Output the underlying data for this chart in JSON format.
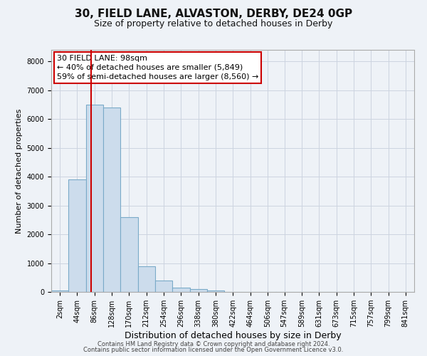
{
  "title1": "30, FIELD LANE, ALVASTON, DERBY, DE24 0GP",
  "title2": "Size of property relative to detached houses in Derby",
  "xlabel": "Distribution of detached houses by size in Derby",
  "ylabel": "Number of detached properties",
  "bar_color": "#ccdcec",
  "bar_edge_color": "#7aaac8",
  "bins": [
    "2sqm",
    "44sqm",
    "86sqm",
    "128sqm",
    "170sqm",
    "212sqm",
    "254sqm",
    "296sqm",
    "338sqm",
    "380sqm",
    "422sqm",
    "464sqm",
    "506sqm",
    "547sqm",
    "589sqm",
    "631sqm",
    "673sqm",
    "715sqm",
    "757sqm",
    "799sqm",
    "841sqm"
  ],
  "values": [
    60,
    3900,
    6500,
    6400,
    2600,
    900,
    400,
    150,
    100,
    50,
    0,
    0,
    0,
    0,
    0,
    0,
    0,
    0,
    0,
    0,
    0
  ],
  "bin_width": 42,
  "bin_starts": [
    2,
    44,
    86,
    128,
    170,
    212,
    254,
    296,
    338,
    380,
    422,
    464,
    506,
    547,
    589,
    631,
    673,
    715,
    757,
    799,
    841
  ],
  "property_size": 98,
  "red_line_color": "#cc0000",
  "annotation_line1": "30 FIELD LANE: 98sqm",
  "annotation_line2": "← 40% of detached houses are smaller (5,849)",
  "annotation_line3": "59% of semi-detached houses are larger (8,560) →",
  "annotation_box_color": "#ffffff",
  "annotation_box_edge_color": "#cc0000",
  "ylim": [
    0,
    8400
  ],
  "yticks": [
    0,
    1000,
    2000,
    3000,
    4000,
    5000,
    6000,
    7000,
    8000
  ],
  "grid_color": "#ccd4e0",
  "footer1": "Contains HM Land Registry data © Crown copyright and database right 2024.",
  "footer2": "Contains public sector information licensed under the Open Government Licence v3.0.",
  "background_color": "#eef2f7",
  "title1_fontsize": 11,
  "title2_fontsize": 9,
  "xlabel_fontsize": 9,
  "ylabel_fontsize": 8,
  "tick_fontsize": 7,
  "footer_fontsize": 6,
  "annot_fontsize": 8
}
